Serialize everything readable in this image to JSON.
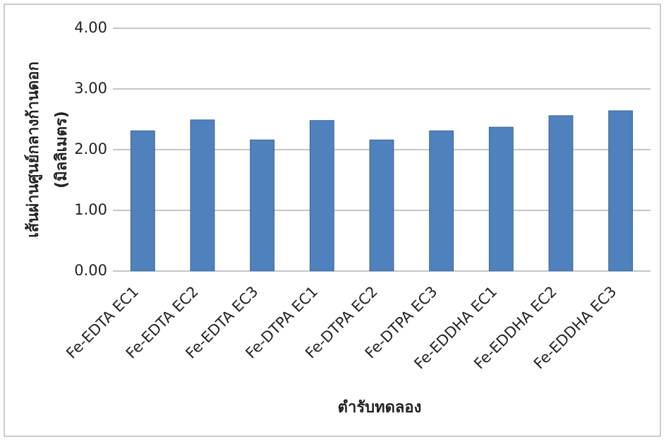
{
  "chart_data": {
    "type": "bar",
    "xlabel": "ตำรับทดลอง",
    "ylabel": [
      "เส้นผ่านศูนย์กลางก้านดอก",
      "(มิลลิเมตร)"
    ],
    "categories": [
      "Fe-EDTA EC1",
      "Fe-EDTA EC2",
      "Fe-EDTA EC3",
      "Fe-DTPA EC1",
      "Fe-DTPA EC2",
      "Fe-DTPA EC3",
      "Fe-EDDHA EC1",
      "Fe-EDDHA EC2",
      "Fe-EDDHA EC3"
    ],
    "values": [
      2.31,
      2.49,
      2.16,
      2.48,
      2.16,
      2.31,
      2.37,
      2.56,
      2.64
    ],
    "color": "#4f81bd",
    "ylim": [
      0,
      4
    ],
    "yticks": [
      {
        "value": 0,
        "label": "0.00"
      },
      {
        "value": 1,
        "label": "1.00"
      },
      {
        "value": 2,
        "label": "2.00"
      },
      {
        "value": 3,
        "label": "3.00"
      },
      {
        "value": 4,
        "label": "4.00"
      }
    ],
    "grid": true
  }
}
